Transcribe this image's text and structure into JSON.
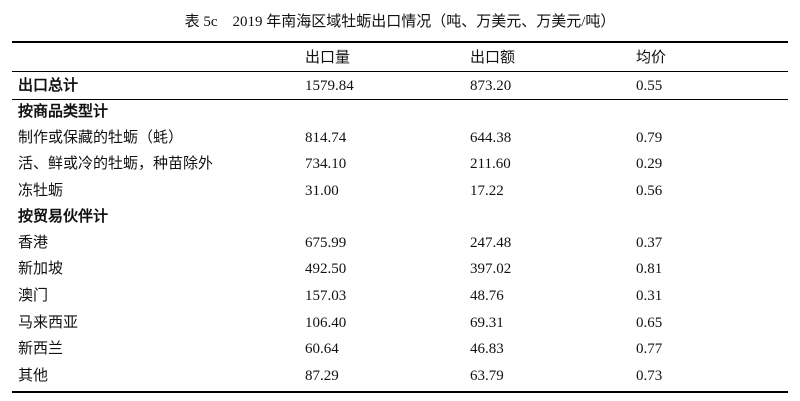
{
  "title": "表 5c　2019 年南海区域牡蛎出口情况（吨、万美元、万美元/吨）",
  "table": {
    "header": [
      "出口量",
      "出口额",
      "均价"
    ],
    "total": {
      "label": "出口总计",
      "values": [
        "1579.84",
        "873.20",
        "0.55"
      ]
    },
    "groups": [
      {
        "title": "按商品类型计",
        "rows": [
          {
            "label": "制作或保藏的牡蛎（蚝）",
            "values": [
              "814.74",
              "644.38",
              "0.79"
            ]
          },
          {
            "label": "活、鲜或冷的牡蛎，种苗除外",
            "values": [
              "734.10",
              "211.60",
              "0.29"
            ]
          },
          {
            "label": "冻牡蛎",
            "values": [
              "31.00",
              "17.22",
              "0.56"
            ]
          }
        ]
      },
      {
        "title": "按贸易伙伴计",
        "rows": [
          {
            "label": "香港",
            "values": [
              "675.99",
              "247.48",
              "0.37"
            ]
          },
          {
            "label": "新加坡",
            "values": [
              "492.50",
              "397.02",
              "0.81"
            ]
          },
          {
            "label": "澳门",
            "values": [
              "157.03",
              "48.76",
              "0.31"
            ]
          },
          {
            "label": "马来西亚",
            "values": [
              "106.40",
              "69.31",
              "0.65"
            ]
          },
          {
            "label": "新西兰",
            "values": [
              "60.64",
              "46.83",
              "0.77"
            ]
          },
          {
            "label": "其他",
            "values": [
              "87.29",
              "63.79",
              "0.73"
            ]
          }
        ]
      }
    ]
  }
}
